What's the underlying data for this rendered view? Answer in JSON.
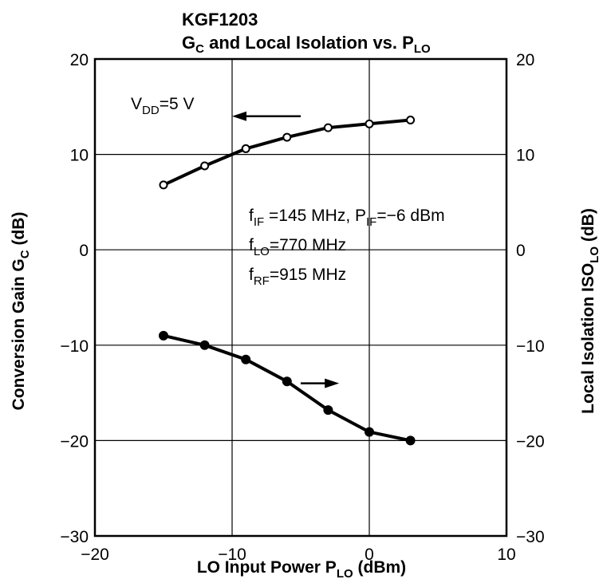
{
  "chart_data": {
    "type": "line",
    "title": "KGF1203",
    "subtitle": {
      "main": "G",
      "sub1": "C",
      "mid": " and Local Isolation vs. P",
      "sub2": "LO"
    },
    "xlabel": {
      "main": "LO Input Power  P",
      "sub": "LO",
      "tail": "  (dBm)"
    },
    "ylabel_left": {
      "main": "Conversion Gain  G",
      "sub": "C",
      "tail": "  (dB)"
    },
    "ylabel_right": {
      "main": "Local Isolation  ISO",
      "sub": "LO",
      "tail": "  (dB)"
    },
    "xlim": [
      -20,
      10
    ],
    "ylim": [
      -30,
      20
    ],
    "ylim_right": [
      -30,
      20
    ],
    "x_ticks": [
      -20,
      -10,
      0,
      10
    ],
    "y_ticks": [
      -30,
      -20,
      -10,
      0,
      10,
      20
    ],
    "grid": true,
    "series": [
      {
        "key": "gain",
        "axis": "left",
        "marker": "open-circle",
        "x": [
          -15,
          -12,
          -9,
          -6,
          -3,
          0,
          3
        ],
        "y": [
          6.8,
          8.8,
          10.6,
          11.8,
          12.8,
          13.2,
          13.6
        ]
      },
      {
        "key": "isolation",
        "axis": "right",
        "marker": "filled-circle",
        "x": [
          -15,
          -12,
          -9,
          -6,
          -3,
          0,
          3
        ],
        "y": [
          -9.0,
          -10.0,
          -11.5,
          -13.8,
          -16.8,
          -19.1,
          -20.0
        ]
      }
    ],
    "annotations": {
      "vdd": {
        "main": "V",
        "sub": "DD",
        "tail": "=5 V"
      },
      "fif": {
        "main": "f",
        "sub": "IF",
        "mid": " =145 MHz, P",
        "sub2": "IF",
        "tail": "=−6 dBm"
      },
      "flo": {
        "main": "f",
        "sub": "LO",
        "tail": "=770 MHz"
      },
      "frf": {
        "main": "f",
        "sub": "RF",
        "tail": "=915 MHz"
      },
      "arrow_left": {
        "x_from": -5,
        "x_to": -10,
        "y": 14,
        "axis": "left"
      },
      "arrow_right": {
        "x_from": -5,
        "x_to": -2.2,
        "y": -14,
        "axis": "left"
      }
    }
  }
}
